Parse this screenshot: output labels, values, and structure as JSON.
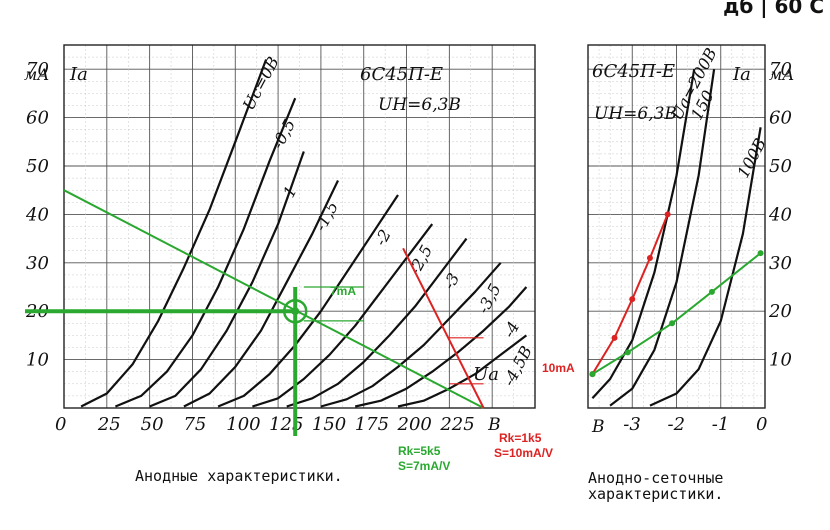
{
  "page_corner": "дб | 60 С",
  "chart_data": [
    {
      "type": "line",
      "title": "6С45П-Е",
      "subtitle": "UН=6,3В",
      "caption": "Анодные характеристики.",
      "xlabel": "Uа",
      "xunit": "В",
      "ylabel": "Iа",
      "yunit": "мА",
      "xlim": [
        0,
        275
      ],
      "ylim": [
        0,
        75
      ],
      "xticks": [
        0,
        25,
        50,
        75,
        100,
        125,
        150,
        175,
        200,
        225
      ],
      "xtick_labels": [
        "0",
        "25",
        "50",
        "75",
        "100",
        "125",
        "150",
        "175",
        "200",
        "225"
      ],
      "yticks": [
        10,
        20,
        30,
        40,
        50,
        60,
        70
      ],
      "ytick_labels": [
        "10",
        "20",
        "30",
        "40",
        "50",
        "60",
        "70"
      ],
      "grid": true,
      "series": [
        {
          "name": "Uс=0В",
          "x": [
            10,
            25,
            40,
            55,
            70,
            85,
            100,
            118
          ],
          "y": [
            0.3,
            3,
            9,
            18,
            29,
            41,
            55,
            72
          ]
        },
        {
          "name": "-0,5",
          "x": [
            30,
            45,
            60,
            75,
            90,
            105,
            120,
            135
          ],
          "y": [
            0.3,
            2.5,
            7.5,
            15,
            25,
            37,
            51,
            64
          ]
        },
        {
          "name": "-1",
          "x": [
            50,
            65,
            80,
            95,
            110,
            125,
            140
          ],
          "y": [
            0.3,
            2.5,
            8,
            16,
            26,
            38,
            53
          ]
        },
        {
          "name": "-1,5",
          "x": [
            70,
            85,
            100,
            115,
            130,
            145,
            160
          ],
          "y": [
            0.3,
            3,
            8.5,
            16,
            26,
            36,
            47
          ]
        },
        {
          "name": "-2",
          "x": [
            90,
            105,
            120,
            135,
            150,
            165,
            180,
            195
          ],
          "y": [
            0.3,
            2.5,
            7,
            13,
            20,
            28,
            36,
            44
          ]
        },
        {
          "name": "-2,5",
          "x": [
            110,
            125,
            140,
            155,
            170,
            185,
            200,
            215
          ],
          "y": [
            0.3,
            2,
            6,
            11,
            17,
            24,
            31,
            38
          ]
        },
        {
          "name": "-3",
          "x": [
            130,
            145,
            160,
            175,
            190,
            205,
            220,
            235
          ],
          "y": [
            0.3,
            2,
            5,
            9.5,
            15,
            21,
            28,
            35
          ]
        },
        {
          "name": "-3,5",
          "x": [
            150,
            165,
            180,
            195,
            210,
            225,
            240,
            255
          ],
          "y": [
            0.3,
            1.8,
            4.5,
            8.5,
            13,
            18.5,
            24,
            30
          ]
        },
        {
          "name": "-4",
          "x": [
            170,
            185,
            200,
            215,
            230,
            245,
            260,
            270
          ],
          "y": [
            0.3,
            1.5,
            4,
            7.5,
            11.5,
            16,
            21,
            25
          ]
        },
        {
          "name": "-4,5В",
          "x": [
            195,
            210,
            225,
            240,
            255,
            270
          ],
          "y": [
            0.3,
            1.5,
            4,
            7,
            11,
            15
          ]
        }
      ],
      "load_lines": [
        {
          "color": "#2aa830",
          "x": [
            0,
            245
          ],
          "y": [
            45,
            0
          ]
        },
        {
          "color": "#dd2222",
          "x": [
            198,
            245
          ],
          "y": [
            33,
            0
          ]
        }
      ],
      "operating_point": {
        "color": "#2aa830",
        "x": 135,
        "y": 20
      },
      "markers": [
        {
          "color": "#dd2222",
          "x": [
            225,
            245
          ],
          "y": [
            14.5,
            14.5
          ]
        },
        {
          "color": "#dd2222",
          "x": [
            225,
            245
          ],
          "y": [
            5,
            5
          ]
        },
        {
          "color": "#2aa830",
          "x": [
            140,
            175
          ],
          "y": [
            25,
            25
          ]
        },
        {
          "color": "#2aa830",
          "x": [
            140,
            175
          ],
          "y": [
            18,
            18
          ]
        }
      ],
      "annotations": [
        {
          "text": "7mA",
          "color": "#2aa830"
        },
        {
          "text": "10mA",
          "color": "#dd2222"
        },
        {
          "text": "Rk=5k5",
          "color": "#2aa830"
        },
        {
          "text": "S=7mA/V",
          "color": "#2aa830"
        },
        {
          "text": "Rk=1k5",
          "color": "#dd2222"
        },
        {
          "text": "S=10mA/V",
          "color": "#dd2222"
        }
      ]
    },
    {
      "type": "line",
      "title": "6С45П-Е",
      "subtitle": "UН=6,3В",
      "caption": "Анодно-сеточные характеристики.",
      "xlabel": "",
      "xunit": "В",
      "ylabel": "Iа",
      "yunit": "мА",
      "xlim": [
        -4,
        0
      ],
      "ylim": [
        0,
        75
      ],
      "xticks": [
        -3,
        -2,
        -1,
        0
      ],
      "xtick_labels": [
        "-3",
        "-2",
        "-1",
        "0"
      ],
      "yticks": [
        10,
        20,
        30,
        40,
        50,
        60,
        70
      ],
      "ytick_labels": [
        "10",
        "20",
        "30",
        "40",
        "50",
        "60",
        "70"
      ],
      "grid": true,
      "series": [
        {
          "name": "Uа=200В",
          "x": [
            -3.9,
            -3.5,
            -3,
            -2.5,
            -2,
            -1.6
          ],
          "y": [
            2,
            6,
            14,
            28,
            48,
            70
          ]
        },
        {
          "name": "150",
          "x": [
            -3.5,
            -3,
            -2.5,
            -2,
            -1.5,
            -1.15
          ],
          "y": [
            0.5,
            4,
            12,
            26,
            48,
            70
          ]
        },
        {
          "name": "100В",
          "x": [
            -2.6,
            -2,
            -1.5,
            -1,
            -0.5,
            -0.1
          ],
          "y": [
            0.5,
            3,
            8,
            18,
            36,
            58
          ]
        }
      ],
      "load_lines": [
        {
          "color": "#dd2222",
          "x": [
            -3.9,
            -3.4,
            -3,
            -2.6,
            -2.2
          ],
          "y": [
            7,
            14.5,
            22.5,
            31,
            40
          ]
        },
        {
          "color": "#2aa830",
          "x": [
            -3.9,
            -3.1,
            -2.1,
            -1.2,
            -0.1
          ],
          "y": [
            7,
            11.5,
            17.5,
            24,
            32
          ]
        }
      ]
    }
  ]
}
